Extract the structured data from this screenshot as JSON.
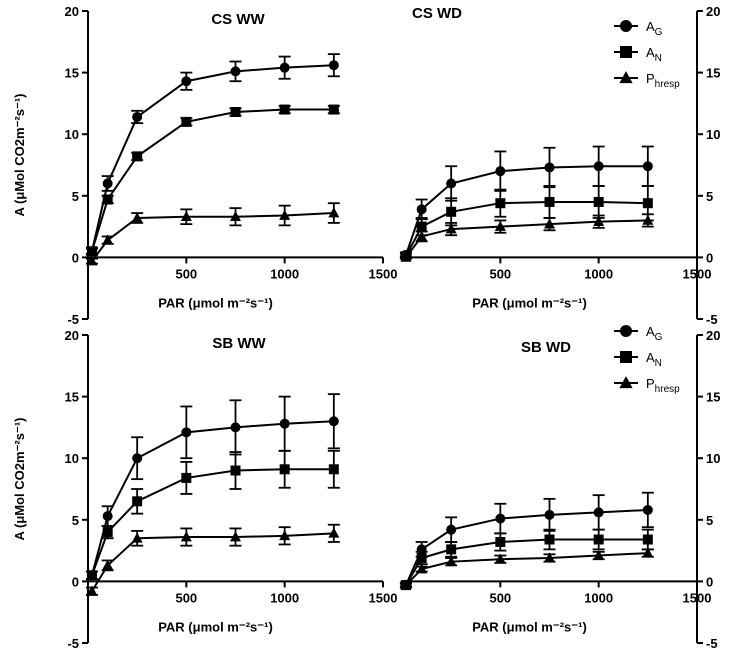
{
  "chart_data": [
    {
      "type": "line",
      "title": "CS WW",
      "xlabel": "PAR (μmol m⁻²s⁻¹)",
      "ylabel": "A (μMol CO2m⁻²s⁻¹)",
      "xlim": [
        0,
        1500
      ],
      "ylim": [
        -5,
        20
      ],
      "xticks": [
        "500",
        "1000",
        "1500"
      ],
      "yticks": [
        "-5",
        "0",
        "5",
        "10",
        "15",
        "20"
      ],
      "x": [
        20,
        100,
        250,
        500,
        750,
        1000,
        1250
      ],
      "series": [
        {
          "name": "A_G",
          "marker": "circle",
          "values": [
            0.5,
            6.0,
            11.4,
            14.3,
            15.1,
            15.4,
            15.6
          ],
          "errors": [
            0.3,
            0.6,
            0.5,
            0.7,
            0.8,
            0.9,
            0.9
          ]
        },
        {
          "name": "A_N",
          "marker": "square",
          "values": [
            0.5,
            4.7,
            8.2,
            11.0,
            11.8,
            12.0,
            12.0
          ],
          "errors": [
            0.2,
            0.3,
            0.3,
            0.3,
            0.3,
            0.3,
            0.3
          ]
        },
        {
          "name": "P_hresp",
          "marker": "triangle",
          "values": [
            -0.3,
            1.4,
            3.2,
            3.3,
            3.3,
            3.4,
            3.6
          ],
          "errors": [
            0.2,
            0.3,
            0.4,
            0.6,
            0.7,
            0.8,
            0.8
          ]
        }
      ]
    },
    {
      "type": "line",
      "title": "CS WD",
      "xlabel": "PAR (μmol m⁻²s⁻¹)",
      "xlim": [
        0,
        1500
      ],
      "ylim": [
        -5,
        20
      ],
      "xticks": [
        "500",
        "1000",
        "1500"
      ],
      "yticks": [
        "-5",
        "0",
        "5",
        "10",
        "15",
        "20"
      ],
      "x": [
        20,
        100,
        250,
        500,
        750,
        1000,
        1250
      ],
      "series": [
        {
          "name": "A_G",
          "marker": "circle",
          "values": [
            0.2,
            3.9,
            6.0,
            7.0,
            7.3,
            7.4,
            7.4
          ],
          "errors": [
            0.2,
            0.8,
            1.4,
            1.6,
            1.6,
            1.6,
            1.6
          ]
        },
        {
          "name": "A_N",
          "marker": "square",
          "values": [
            0.1,
            2.5,
            3.7,
            4.4,
            4.5,
            4.5,
            4.4
          ],
          "errors": [
            0.2,
            0.7,
            1.1,
            1.1,
            1.3,
            1.3,
            1.4
          ]
        },
        {
          "name": "P_hresp",
          "marker": "triangle",
          "values": [
            0.0,
            1.7,
            2.3,
            2.5,
            2.7,
            2.9,
            3.0
          ],
          "errors": [
            0.1,
            0.4,
            0.5,
            0.5,
            0.5,
            0.5,
            0.5
          ]
        }
      ]
    },
    {
      "type": "line",
      "title": "SB WW",
      "xlabel": "PAR (μmol m⁻²s⁻¹)",
      "ylabel": "A (μMol CO2m⁻²s⁻¹)",
      "xlim": [
        0,
        1500
      ],
      "ylim": [
        -5,
        20
      ],
      "xticks": [
        "500",
        "1000",
        "1500"
      ],
      "yticks": [
        "-5",
        "0",
        "5",
        "10",
        "15",
        "20"
      ],
      "x": [
        20,
        100,
        250,
        500,
        750,
        1000,
        1250
      ],
      "series": [
        {
          "name": "A_G",
          "marker": "circle",
          "values": [
            0.5,
            5.3,
            10.0,
            12.1,
            12.5,
            12.8,
            13.0
          ],
          "errors": [
            0.3,
            0.8,
            1.7,
            2.1,
            2.2,
            2.2,
            2.2
          ]
        },
        {
          "name": "A_N",
          "marker": "square",
          "values": [
            0.5,
            4.0,
            6.5,
            8.4,
            9.0,
            9.1,
            9.1
          ],
          "errors": [
            0.3,
            0.5,
            1.0,
            1.3,
            1.5,
            1.5,
            1.5
          ]
        },
        {
          "name": "P_hresp",
          "marker": "triangle",
          "values": [
            -0.8,
            1.3,
            3.5,
            3.6,
            3.6,
            3.7,
            3.9
          ],
          "errors": [
            0.3,
            0.4,
            0.6,
            0.7,
            0.7,
            0.7,
            0.7
          ]
        }
      ]
    },
    {
      "type": "line",
      "title": "SB WD",
      "xlabel": "PAR (μmol m⁻²s⁻¹)",
      "xlim": [
        0,
        1500
      ],
      "ylim": [
        -5,
        20
      ],
      "xticks": [
        "500",
        "1000",
        "1500"
      ],
      "yticks": [
        "-5",
        "0",
        "5",
        "10",
        "15",
        "20"
      ],
      "x": [
        20,
        100,
        250,
        500,
        750,
        1000,
        1250
      ],
      "series": [
        {
          "name": "A_G",
          "marker": "circle",
          "values": [
            -0.3,
            2.6,
            4.2,
            5.1,
            5.4,
            5.6,
            5.8
          ],
          "errors": [
            0.2,
            0.6,
            1.0,
            1.2,
            1.3,
            1.4,
            1.4
          ]
        },
        {
          "name": "A_N",
          "marker": "square",
          "values": [
            -0.3,
            1.9,
            2.6,
            3.2,
            3.4,
            3.4,
            3.4
          ],
          "errors": [
            0.2,
            0.5,
            0.6,
            0.7,
            0.8,
            0.8,
            0.8
          ]
        },
        {
          "name": "P_hresp",
          "marker": "triangle",
          "values": [
            -0.3,
            1.0,
            1.6,
            1.8,
            1.9,
            2.1,
            2.3
          ],
          "errors": [
            0.1,
            0.2,
            0.3,
            0.3,
            0.3,
            0.3,
            0.3
          ]
        }
      ]
    }
  ],
  "legend": [
    {
      "base": "A",
      "sub": "G",
      "marker": "circle"
    },
    {
      "base": "A",
      "sub": "N",
      "marker": "square"
    },
    {
      "base": "P",
      "sub": "hresp",
      "marker": "triangle"
    }
  ]
}
